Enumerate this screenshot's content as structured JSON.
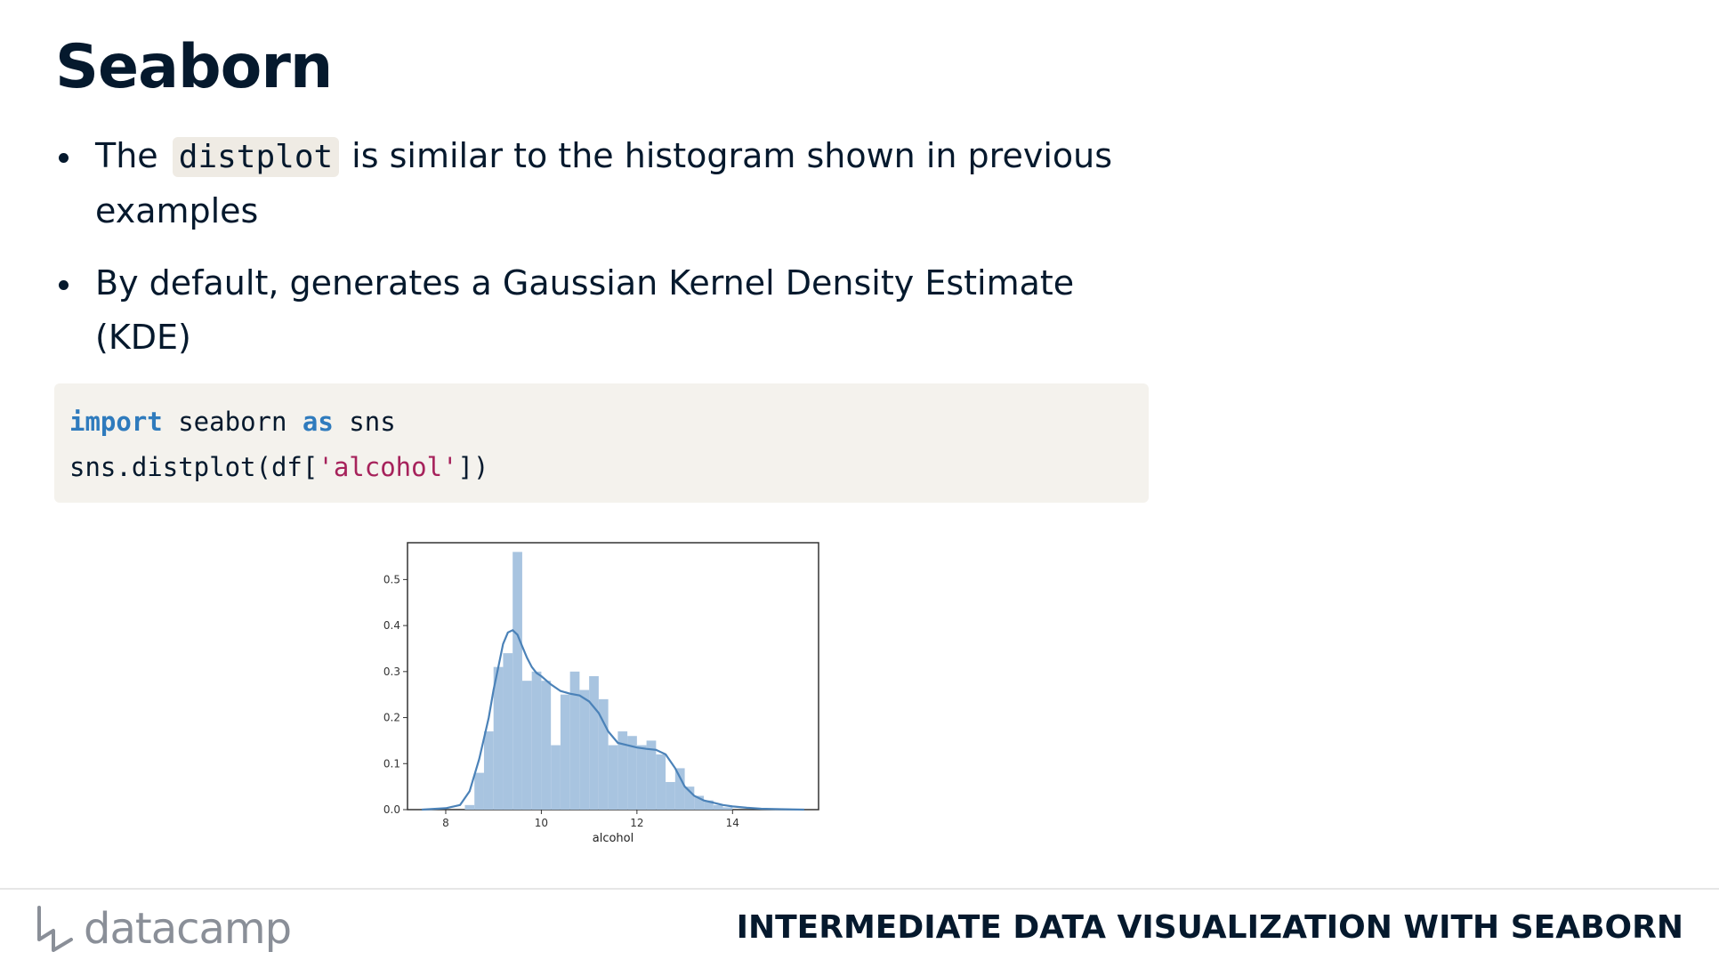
{
  "slide": {
    "title": "Seaborn",
    "bullets": [
      {
        "before": "The",
        "code": "distplot",
        "after": "is similar to the histogram shown in previous examples"
      },
      {
        "text": "By default, generates a Gaussian Kernel Density Estimate (KDE)"
      }
    ]
  },
  "code_block": {
    "line1": {
      "kw1": "import",
      "mid": " seaborn ",
      "kw2": "as",
      "end": " sns"
    },
    "line2": {
      "pre": "sns.distplot(df[",
      "str": "'alcohol'",
      "post": "])"
    }
  },
  "footer": {
    "logo_text": "datacamp",
    "course_title": "INTERMEDIATE DATA VISUALIZATION WITH SEABORN",
    "logo_color": "#8a8f98"
  },
  "chart_data": {
    "type": "bar",
    "xlabel": "alcohol",
    "ylabel": "",
    "xlim": [
      7.2,
      15.8
    ],
    "ylim": [
      0,
      0.58
    ],
    "xticks": [
      "8",
      "10",
      "12",
      "14"
    ],
    "yticks": [
      "0.0",
      "0.1",
      "0.2",
      "0.3",
      "0.4",
      "0.5"
    ],
    "bar_color": "#a8c4e0",
    "line_color": "#4b82b8",
    "histogram": {
      "bin_edges": [
        8.4,
        8.6,
        8.8,
        9.0,
        9.2,
        9.4,
        9.6,
        9.8,
        10.0,
        10.2,
        10.4,
        10.6,
        10.8,
        11.0,
        11.2,
        11.4,
        11.6,
        11.8,
        12.0,
        12.2,
        12.4,
        12.6,
        12.8,
        13.0,
        13.2,
        13.4,
        13.6,
        13.8,
        14.0
      ],
      "values": [
        0.01,
        0.08,
        0.17,
        0.31,
        0.34,
        0.56,
        0.28,
        0.3,
        0.28,
        0.14,
        0.25,
        0.3,
        0.26,
        0.29,
        0.24,
        0.14,
        0.17,
        0.16,
        0.14,
        0.15,
        0.12,
        0.06,
        0.09,
        0.05,
        0.03,
        0.02,
        0.01,
        0.005
      ]
    },
    "kde": {
      "x": [
        7.5,
        8.0,
        8.3,
        8.5,
        8.7,
        8.9,
        9.0,
        9.1,
        9.2,
        9.3,
        9.4,
        9.5,
        9.6,
        9.7,
        9.8,
        9.9,
        10.0,
        10.2,
        10.4,
        10.6,
        10.8,
        11.0,
        11.2,
        11.4,
        11.6,
        11.8,
        12.0,
        12.2,
        12.4,
        12.6,
        12.8,
        13.0,
        13.2,
        13.4,
        13.6,
        13.8,
        14.0,
        14.3,
        14.6,
        15.0,
        15.5
      ],
      "y": [
        0.0,
        0.003,
        0.01,
        0.04,
        0.11,
        0.2,
        0.26,
        0.31,
        0.36,
        0.385,
        0.39,
        0.38,
        0.355,
        0.33,
        0.31,
        0.297,
        0.29,
        0.272,
        0.258,
        0.252,
        0.248,
        0.235,
        0.21,
        0.17,
        0.145,
        0.14,
        0.135,
        0.132,
        0.13,
        0.12,
        0.09,
        0.05,
        0.03,
        0.02,
        0.015,
        0.01,
        0.007,
        0.004,
        0.002,
        0.001,
        0.0
      ]
    }
  }
}
